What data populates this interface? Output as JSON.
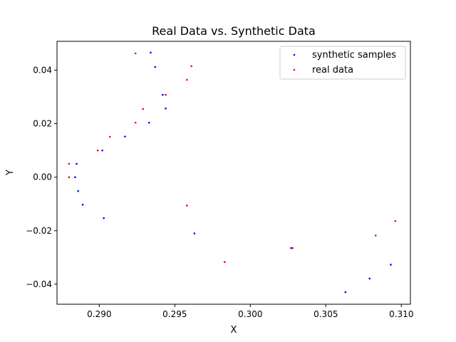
{
  "chart_data": {
    "type": "scatter",
    "title": "Real Data vs. Synthetic Data",
    "xlabel": "X",
    "ylabel": "Y",
    "xlim": [
      0.2872,
      0.3106
    ],
    "ylim": [
      -0.0475,
      0.0508
    ],
    "xticks": [
      0.29,
      0.295,
      0.3,
      0.305,
      0.31
    ],
    "xtick_labels": [
      "0.290",
      "0.295",
      "0.300",
      "0.305",
      "0.310"
    ],
    "yticks": [
      -0.04,
      -0.02,
      0.0,
      0.02,
      0.04
    ],
    "ytick_labels": [
      "−0.04",
      "−0.02",
      "0.00",
      "0.02",
      "0.04"
    ],
    "grid": false,
    "legend_position": "top-right",
    "series": [
      {
        "name": "synthetic samples",
        "color": "#0000ff",
        "x": [
          0.2934,
          0.2937,
          0.2942,
          0.2944,
          0.2933,
          0.2917,
          0.2902,
          0.2885,
          0.2884,
          0.2886,
          0.2889,
          0.2903,
          0.2963,
          0.3027,
          0.3063,
          0.3079,
          0.3093
        ],
        "y": [
          0.0466,
          0.0412,
          0.0308,
          0.0257,
          0.0204,
          0.0152,
          0.01,
          0.005,
          0.0,
          -0.0052,
          -0.0103,
          -0.0153,
          -0.021,
          -0.0265,
          -0.043,
          -0.0379,
          -0.0327
        ]
      },
      {
        "name": "real data",
        "color": "#ff0000",
        "x": [
          0.2924,
          0.2961,
          0.2958,
          0.2944,
          0.2929,
          0.2924,
          0.2907,
          0.2899,
          0.288,
          0.288,
          0.2958,
          0.2983,
          0.3028,
          0.3083,
          0.3096
        ],
        "y": [
          0.0463,
          0.0415,
          0.0364,
          0.0308,
          0.0255,
          0.0204,
          0.0151,
          0.01,
          0.005,
          0.0,
          -0.0106,
          -0.0317,
          -0.0265,
          -0.0218,
          -0.0164
        ]
      }
    ]
  }
}
